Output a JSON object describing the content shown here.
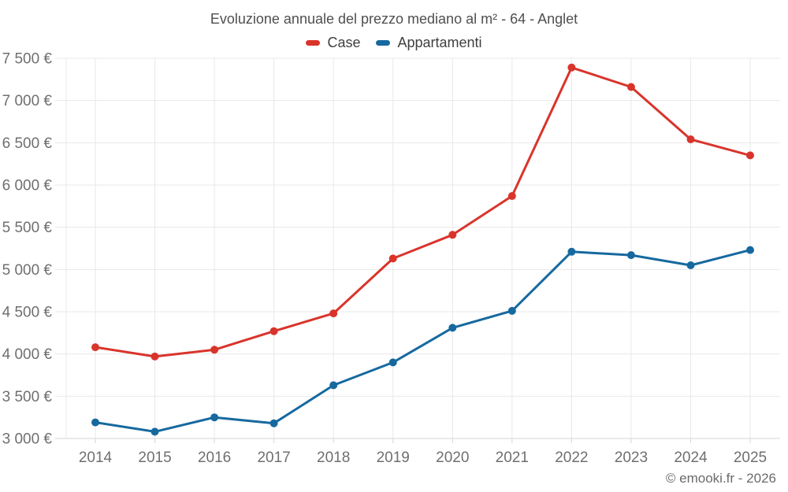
{
  "chart": {
    "title": "Evoluzione annuale del prezzo mediano al m² - 64 - Anglet"
  },
  "legend": {
    "items": [
      {
        "label": "Case",
        "color": "#d9342b"
      },
      {
        "label": "Appartamenti",
        "color": "#16699f"
      }
    ]
  },
  "footer": {
    "credit": "© emooki.fr - 2026"
  },
  "chart_data": {
    "type": "line",
    "title": "Evoluzione annuale del prezzo mediano al m² - 64 - Anglet",
    "categories": [
      "2014",
      "2015",
      "2016",
      "2017",
      "2018",
      "2019",
      "2020",
      "2021",
      "2022",
      "2023",
      "2024",
      "2025"
    ],
    "series": [
      {
        "name": "Case",
        "color": "#d9342b",
        "values": [
          4080,
          3970,
          4050,
          4270,
          4480,
          5130,
          5410,
          5870,
          7390,
          7160,
          6540,
          6350
        ]
      },
      {
        "name": "Appartamenti",
        "color": "#16699f",
        "values": [
          3190,
          3080,
          3250,
          3180,
          3630,
          3900,
          4310,
          4510,
          5210,
          5170,
          5050,
          5230
        ]
      }
    ],
    "xlabel": "",
    "ylabel": "",
    "ylim": [
      3000,
      7500
    ],
    "y_tick_step": 500,
    "y_tick_labels": [
      "3 000 €",
      "3 500 €",
      "4 000 €",
      "4 500 €",
      "5 000 €",
      "5 500 €",
      "6 000 €",
      "6 500 €",
      "7 000 €",
      "7 500 €"
    ],
    "grid": true,
    "legend_position": "top-center",
    "marker": "circle",
    "currency": "€"
  },
  "colors": {
    "background": "#ffffff",
    "grid": "#e8e8e8",
    "axis": "#d4d4d4",
    "title_text": "#4f4f4f",
    "label_text": "#6f6f6f",
    "legend_text": "#3f3f3f",
    "footer_text": "#6b6b6b"
  }
}
